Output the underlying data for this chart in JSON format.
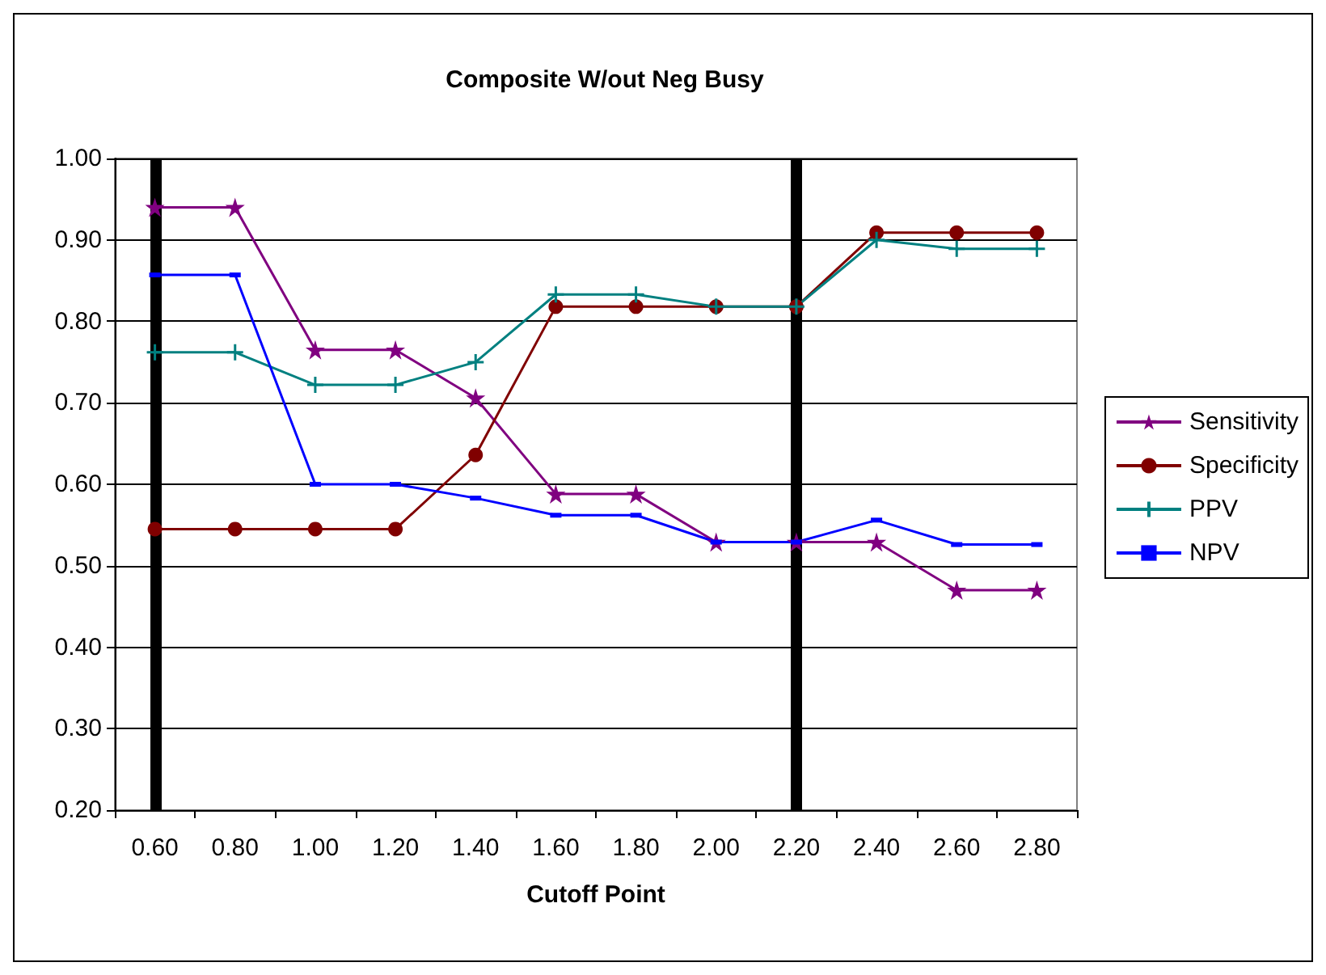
{
  "chart_data": {
    "type": "line",
    "title": "Composite W/out Neg Busy",
    "xlabel": "Cutoff Point",
    "categories": [
      "0.60",
      "0.80",
      "1.00",
      "1.20",
      "1.40",
      "1.60",
      "1.80",
      "2.00",
      "2.20",
      "2.40",
      "2.60",
      "2.80"
    ],
    "series": [
      {
        "name": "Sensitivity",
        "color": "#800080",
        "marker": "star",
        "values": [
          0.94,
          0.94,
          0.765,
          0.765,
          0.706,
          0.588,
          0.588,
          0.529,
          0.529,
          0.529,
          0.47,
          0.47
        ]
      },
      {
        "name": "Specificity",
        "color": "#800000",
        "marker": "circle",
        "values": [
          0.545,
          0.545,
          0.545,
          0.545,
          0.636,
          0.818,
          0.818,
          0.818,
          0.818,
          0.909,
          0.909,
          0.909
        ]
      },
      {
        "name": "PPV",
        "color": "#008080",
        "marker": "cross",
        "values": [
          0.762,
          0.762,
          0.722,
          0.722,
          0.75,
          0.833,
          0.833,
          0.818,
          0.818,
          0.9,
          0.889,
          0.889
        ]
      },
      {
        "name": "NPV",
        "color": "#0000ff",
        "marker": "square",
        "values": [
          0.857,
          0.857,
          0.6,
          0.6,
          0.583,
          0.562,
          0.562,
          0.529,
          0.529,
          0.556,
          0.526,
          0.526
        ]
      }
    ],
    "ylim": [
      0.2,
      1.0
    ],
    "yticks": [
      {
        "value": 0.2,
        "label": "0.20"
      },
      {
        "value": 0.3,
        "label": "0.30"
      },
      {
        "value": 0.4,
        "label": "0.40"
      },
      {
        "value": 0.5,
        "label": "0.50"
      },
      {
        "value": 0.6,
        "label": "0.60"
      },
      {
        "value": 0.7,
        "label": "0.70"
      },
      {
        "value": 0.8,
        "label": "0.80"
      },
      {
        "value": 0.9,
        "label": "0.90"
      },
      {
        "value": 1.0,
        "label": "1.00"
      }
    ],
    "ref_lines": [
      {
        "axis": "x",
        "value": "0.60",
        "color": "#000000"
      },
      {
        "axis": "x",
        "value": "2.20",
        "color": "#000000"
      }
    ],
    "grid": "y",
    "legend": "right"
  }
}
